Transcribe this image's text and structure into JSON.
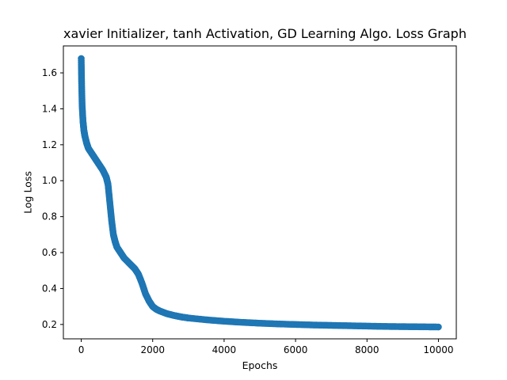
{
  "chart_data": {
    "type": "scatter",
    "title": "xavier Initializer, tanh Activation, GD Learning Algo. Loss Graph",
    "xlabel": "Epochs",
    "ylabel": "Log Loss",
    "xlim": [
      -500,
      10500
    ],
    "ylim": [
      0.12,
      1.75
    ],
    "xticks": [
      0,
      2000,
      4000,
      6000,
      8000,
      10000
    ],
    "yticks": [
      0.2,
      0.4,
      0.6,
      0.8,
      1.0,
      1.2,
      1.4,
      1.6
    ],
    "xtick_labels": [
      "0",
      "2000",
      "4000",
      "6000",
      "8000",
      "10000"
    ],
    "ytick_labels": [
      "0.2",
      "0.4",
      "0.6",
      "0.8",
      "1.0",
      "1.2",
      "1.4",
      "1.6"
    ],
    "grid": false,
    "marker_color": "#1f77b4",
    "series": [
      {
        "x": [
          0,
          10,
          25,
          50,
          75,
          100,
          150,
          200,
          300,
          400,
          500,
          600,
          700,
          750,
          800,
          850,
          900,
          950,
          1000,
          1100,
          1200,
          1300,
          1400,
          1500,
          1600,
          1700,
          1800,
          1900,
          2000,
          2100,
          2200,
          2400,
          2600,
          2800,
          3000,
          3500,
          4000,
          4500,
          5000,
          5500,
          6000,
          6500,
          7000,
          7500,
          8000,
          8500,
          9000,
          9500,
          10000
        ],
        "y": [
          1.68,
          1.55,
          1.42,
          1.33,
          1.28,
          1.25,
          1.21,
          1.18,
          1.15,
          1.12,
          1.09,
          1.06,
          1.02,
          0.98,
          0.88,
          0.78,
          0.7,
          0.66,
          0.63,
          0.6,
          0.57,
          0.55,
          0.53,
          0.51,
          0.48,
          0.43,
          0.37,
          0.33,
          0.3,
          0.285,
          0.275,
          0.26,
          0.25,
          0.242,
          0.236,
          0.226,
          0.218,
          0.212,
          0.207,
          0.203,
          0.2,
          0.197,
          0.195,
          0.193,
          0.191,
          0.189,
          0.188,
          0.187,
          0.186
        ]
      }
    ]
  }
}
